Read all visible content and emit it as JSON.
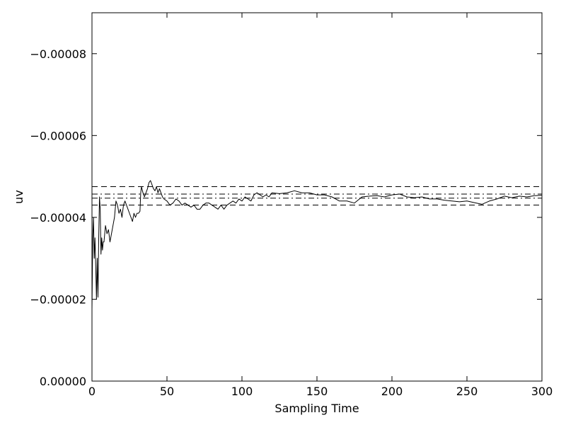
{
  "chart_data": {
    "type": "line",
    "title": "",
    "xlabel": "Sampling Time",
    "ylabel": "uv",
    "xlim": [
      0,
      300
    ],
    "ylim": [
      0.0,
      -9e-05
    ],
    "y_inverted": true,
    "x_ticks": [
      0,
      50,
      100,
      150,
      200,
      250,
      300
    ],
    "x_tick_labels": [
      "0",
      "50",
      "100",
      "150",
      "200",
      "250",
      "300"
    ],
    "y_ticks": [
      0.0,
      -2e-05,
      -4e-05,
      -6e-05,
      -8e-05
    ],
    "y_tick_labels": [
      "0.00000",
      "−0.00002",
      "−0.00004",
      "−0.00006",
      "−0.00008"
    ],
    "grid": false,
    "legend": "none",
    "series": [
      {
        "style": "solid",
        "color": "#000000",
        "x": [
          0,
          0.5,
          1,
          1.5,
          2,
          2.5,
          3,
          3.5,
          4,
          4.5,
          5,
          5.5,
          6,
          6.5,
          7,
          7.5,
          8,
          9,
          10,
          11,
          12,
          13,
          14,
          15,
          16,
          17,
          18,
          19,
          20,
          21,
          22,
          23,
          24,
          25,
          26,
          27,
          28,
          29,
          30,
          31,
          32,
          32.5,
          33,
          34,
          35,
          36,
          37,
          38,
          39,
          40,
          41,
          42,
          43,
          44,
          45,
          46,
          47,
          48,
          50,
          52,
          54,
          56,
          58,
          60,
          62,
          64,
          66,
          68,
          70,
          72,
          74,
          76,
          78,
          80,
          82,
          84,
          86,
          88,
          90,
          92,
          94,
          96,
          98,
          100,
          102,
          104,
          106,
          108,
          110,
          112,
          114,
          116,
          118,
          120,
          125,
          130,
          135,
          140,
          145,
          150,
          155,
          160,
          165,
          170,
          175,
          180,
          185,
          190,
          195,
          200,
          205,
          210,
          215,
          220,
          225,
          230,
          235,
          240,
          245,
          250,
          255,
          260,
          265,
          270,
          275,
          280,
          285,
          290,
          295,
          300
        ],
        "y": [
          -1.75e-05,
          -3.5e-05,
          -4e-05,
          -3e-05,
          -3.5e-05,
          -2.8e-05,
          -2e-05,
          -3e-05,
          -2.05e-05,
          -3.5e-05,
          -4.5e-05,
          -4.2e-05,
          -3.1e-05,
          -3.5e-05,
          -3.2e-05,
          -3.4e-05,
          -3.4e-05,
          -3.8e-05,
          -3.6e-05,
          -3.7e-05,
          -3.4e-05,
          -3.6e-05,
          -3.8e-05,
          -4e-05,
          -4.4e-05,
          -4.3e-05,
          -4.1e-05,
          -4.2e-05,
          -4e-05,
          -4.3e-05,
          -4.4e-05,
          -4.3e-05,
          -4.2e-05,
          -4.1e-05,
          -4e-05,
          -3.9e-05,
          -4.1e-05,
          -4e-05,
          -4.1e-05,
          -4.1e-05,
          -4.15e-05,
          -4.6e-05,
          -4.75e-05,
          -4.6e-05,
          -4.5e-05,
          -4.6e-05,
          -4.7e-05,
          -4.85e-05,
          -4.9e-05,
          -4.8e-05,
          -4.7e-05,
          -4.65e-05,
          -4.75e-05,
          -4.6e-05,
          -4.7e-05,
          -4.6e-05,
          -4.5e-05,
          -4.45e-05,
          -4.4e-05,
          -4.3e-05,
          -4.35e-05,
          -4.45e-05,
          -4.4e-05,
          -4.3e-05,
          -4.35e-05,
          -4.3e-05,
          -4.25e-05,
          -4.3e-05,
          -4.2e-05,
          -4.2e-05,
          -4.3e-05,
          -4.35e-05,
          -4.35e-05,
          -4.3e-05,
          -4.25e-05,
          -4.2e-05,
          -4.3e-05,
          -4.2e-05,
          -4.3e-05,
          -4.35e-05,
          -4.4e-05,
          -4.35e-05,
          -4.45e-05,
          -4.4e-05,
          -4.5e-05,
          -4.45e-05,
          -4.4e-05,
          -4.55e-05,
          -4.6e-05,
          -4.55e-05,
          -4.5e-05,
          -4.55e-05,
          -4.5e-05,
          -4.6e-05,
          -4.58e-05,
          -4.6e-05,
          -4.65e-05,
          -4.6e-05,
          -4.6e-05,
          -4.55e-05,
          -4.55e-05,
          -4.5e-05,
          -4.4e-05,
          -4.4e-05,
          -4.35e-05,
          -4.5e-05,
          -4.52e-05,
          -4.53e-05,
          -4.5e-05,
          -4.55e-05,
          -4.57e-05,
          -4.5e-05,
          -4.48e-05,
          -4.5e-05,
          -4.45e-05,
          -4.45e-05,
          -4.42e-05,
          -4.4e-05,
          -4.38e-05,
          -4.4e-05,
          -4.36e-05,
          -4.32e-05,
          -4.4e-05,
          -4.45e-05,
          -4.52e-05,
          -4.48e-05,
          -4.52e-05,
          -4.5e-05,
          -4.53e-05,
          -4.54e-05
        ]
      },
      {
        "style": "dashed",
        "color": "#000000",
        "x": [
          0,
          300
        ],
        "y": [
          -4.75e-05,
          -4.75e-05
        ]
      },
      {
        "style": "dash-dot",
        "color": "#000000",
        "x": [
          0,
          300
        ],
        "y": [
          -4.57e-05,
          -4.57e-05
        ]
      },
      {
        "style": "dash-dot",
        "color": "#000000",
        "x": [
          0,
          300
        ],
        "y": [
          -4.47e-05,
          -4.47e-05
        ]
      },
      {
        "style": "dashed",
        "color": "#000000",
        "x": [
          0,
          300
        ],
        "y": [
          -4.3e-05,
          -4.3e-05
        ]
      }
    ]
  }
}
